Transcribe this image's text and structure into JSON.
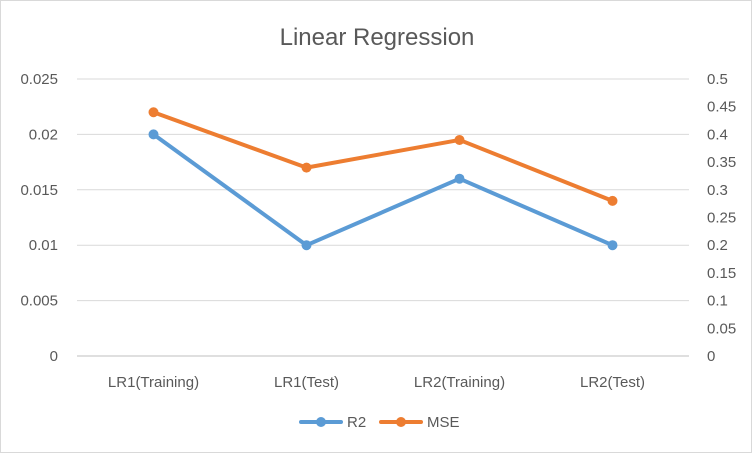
{
  "chart_data": {
    "type": "line",
    "title": "Linear Regression",
    "categories": [
      "LR1(Training)",
      "LR1(Test)",
      "LR2(Training)",
      "LR2(Test)"
    ],
    "series": [
      {
        "name": "R2",
        "axis": "left",
        "color": "#5B9BD5",
        "values": [
          0.02,
          0.01,
          0.016,
          0.01
        ]
      },
      {
        "name": "MSE",
        "axis": "right",
        "color": "#ED7D31",
        "values": [
          0.44,
          0.34,
          0.39,
          0.28
        ]
      }
    ],
    "y_left": {
      "min": 0,
      "max": 0.025,
      "ticks": [
        "0",
        "0.005",
        "0.01",
        "0.015",
        "0.02",
        "0.025"
      ]
    },
    "y_right": {
      "min": 0,
      "max": 0.5,
      "ticks": [
        "0",
        "0.05",
        "0.1",
        "0.15",
        "0.2",
        "0.25",
        "0.3",
        "0.35",
        "0.4",
        "0.45",
        "0.5"
      ]
    },
    "grid": true,
    "legend": "bottom"
  }
}
